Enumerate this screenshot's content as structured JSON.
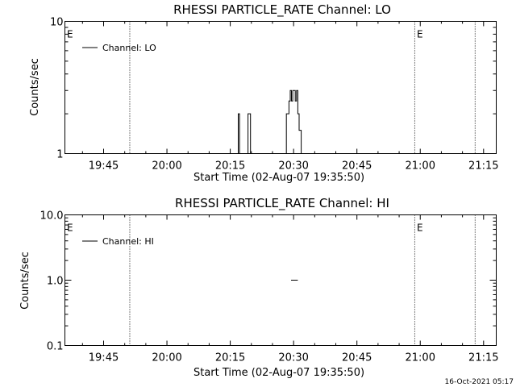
{
  "footer": {
    "timestamp": "16-Oct-2021 05:17"
  },
  "chart_data": [
    {
      "type": "line",
      "title": "RHESSI PARTICLE_RATE Channel: LO",
      "xlabel": "Start Time (02-Aug-07 19:35:50)",
      "ylabel": "Counts/sec",
      "xlim_min": [
        35.833,
        138
      ],
      "x_ticks_min": [
        45,
        60,
        75,
        90,
        105,
        120,
        135
      ],
      "x_tick_labels": [
        "19:45",
        "20:00",
        "20:15",
        "20:30",
        "20:45",
        "21:00",
        "21:15"
      ],
      "y_scale": "log",
      "ylim": [
        1,
        10
      ],
      "y_ticks": [
        1,
        10
      ],
      "y_tick_labels": [
        "1",
        "10"
      ],
      "grid": false,
      "legend": "top-left",
      "vertical_markers_min": [
        51.2,
        118.7,
        133.0
      ],
      "event_letters": [
        {
          "text": "E",
          "x_min": 36.3
        },
        {
          "text": "E",
          "x_min": 119.2
        }
      ],
      "series": [
        {
          "name": "Channel: LO",
          "x_min": [
            76.9,
            76.9,
            77.2,
            77.2,
            79.2,
            79.2,
            79.8,
            79.8,
            88.3,
            88.3,
            88.9,
            88.9,
            89.2,
            89.2,
            89.5,
            89.5,
            89.8,
            89.8,
            90.1,
            90.1,
            90.4,
            90.4,
            90.7,
            90.7,
            91.0,
            91.0,
            91.3,
            91.3,
            91.8,
            91.8
          ],
          "y": [
            1,
            2,
            2,
            1,
            1,
            2,
            2,
            1,
            1,
            2,
            2,
            2.5,
            2.5,
            3,
            3,
            2.5,
            2.5,
            3,
            3,
            3,
            3,
            2.5,
            2.5,
            3,
            3,
            2,
            2,
            1.5,
            1.5,
            1
          ]
        }
      ]
    },
    {
      "type": "line",
      "title": "RHESSI PARTICLE_RATE Channel: HI",
      "xlabel": "Start Time (02-Aug-07 19:35:50)",
      "ylabel": "Counts/sec",
      "xlim_min": [
        35.833,
        138
      ],
      "x_ticks_min": [
        45,
        60,
        75,
        90,
        105,
        120,
        135
      ],
      "x_tick_labels": [
        "19:45",
        "20:00",
        "20:15",
        "20:30",
        "20:45",
        "21:00",
        "21:15"
      ],
      "y_scale": "log",
      "ylim": [
        0.1,
        10
      ],
      "y_ticks": [
        0.1,
        1,
        10
      ],
      "y_tick_labels": [
        "0.1",
        "1.0",
        "10.0"
      ],
      "grid": false,
      "legend": "top-left",
      "vertical_markers_min": [
        51.2,
        118.7,
        133.0
      ],
      "event_letters": [
        {
          "text": "E",
          "x_min": 36.3
        },
        {
          "text": "E",
          "x_min": 119.2
        }
      ],
      "series": [
        {
          "name": "Channel: HI",
          "x_min": [
            89.4,
            91.0
          ],
          "y": [
            1,
            1
          ]
        }
      ]
    }
  ]
}
